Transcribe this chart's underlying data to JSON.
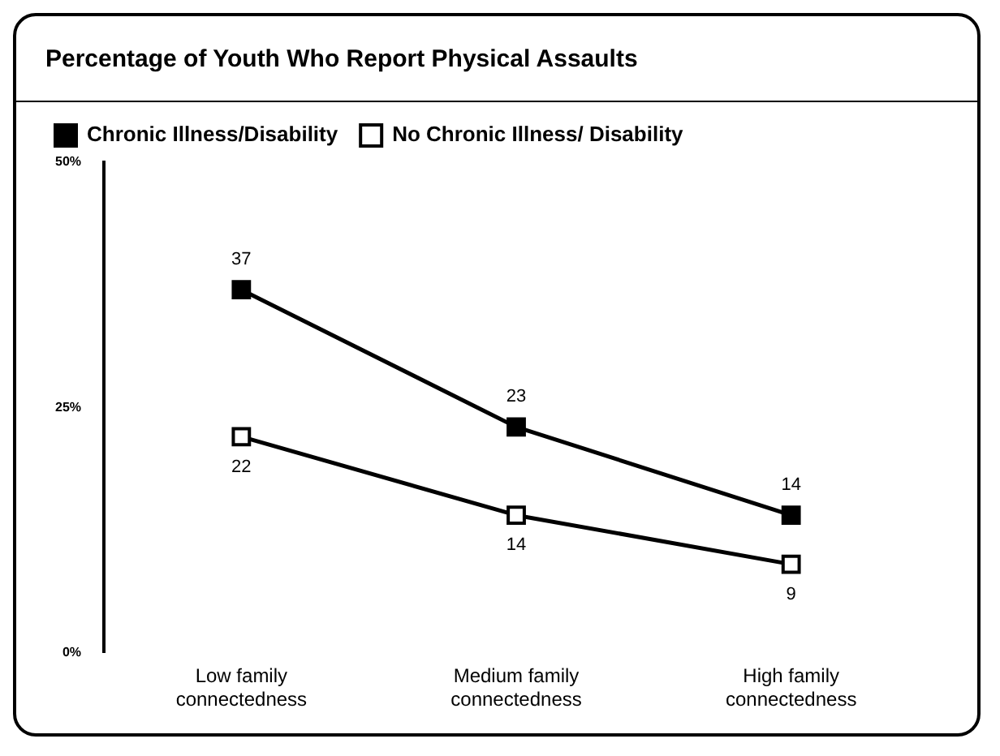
{
  "chart_data": {
    "type": "line",
    "title": "Percentage of Youth Who Report Physical Assaults",
    "categories": [
      "Low family connectedness",
      "Medium family connectedness",
      "High family connectedness"
    ],
    "series": [
      {
        "name": "Chronic Illness/Disability",
        "color": "#000000",
        "values": [
          37,
          23,
          14
        ]
      },
      {
        "name": "No Chronic Illness/ Disability",
        "color": "#000000",
        "values": [
          22,
          14,
          9
        ]
      }
    ],
    "ylim": [
      0,
      50
    ],
    "yticks": [
      {
        "value": 0,
        "label": "0%"
      },
      {
        "value": 25,
        "label": "25%"
      },
      {
        "value": 50,
        "label": "50%"
      }
    ],
    "grid": false,
    "legend": "top left",
    "marker": "square",
    "line_style": "solid",
    "data_labels": true
  }
}
